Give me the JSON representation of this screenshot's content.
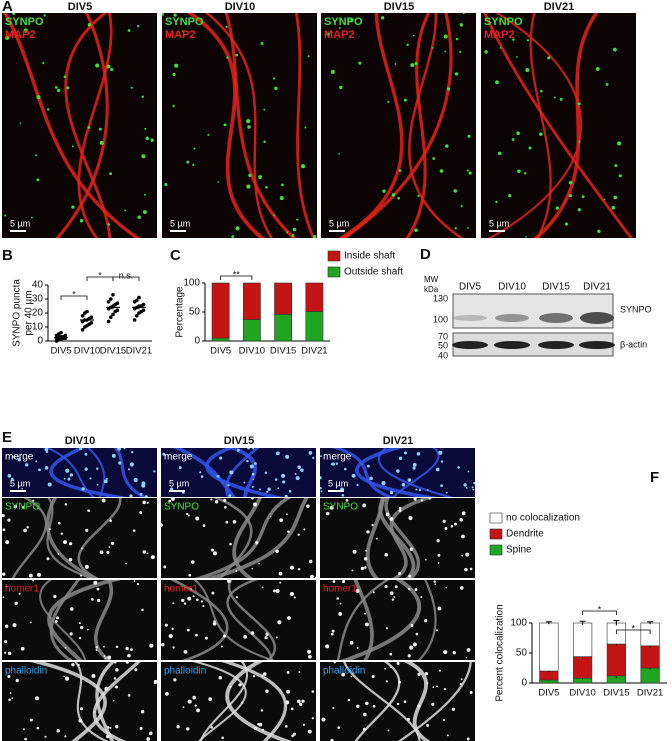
{
  "panel_a": {
    "letter": "A",
    "columns": [
      "DIV5",
      "DIV10",
      "DIV15",
      "DIV21"
    ],
    "stains": [
      "SYNPO",
      "MAP2"
    ],
    "scale_bar": "5 µm"
  },
  "chart_data": [
    {
      "type": "dot",
      "panel": "B",
      "ylabel": [
        "SYNPO puncta",
        "per 40 µm"
      ],
      "categories": [
        "DIV5",
        "DIV10",
        "DIV15",
        "DIV21"
      ],
      "values": [
        2.5,
        15,
        24,
        24
      ],
      "errors": [
        0.5,
        1.2,
        1.5,
        1.4
      ],
      "points": [
        [
          0,
          1,
          1,
          2,
          2,
          2,
          3,
          3,
          3,
          4,
          4,
          5,
          6
        ],
        [
          8,
          10,
          11,
          12,
          13,
          14,
          15,
          15,
          16,
          17,
          18,
          20,
          21
        ],
        [
          14,
          17,
          19,
          21,
          22,
          23,
          24,
          25,
          26,
          27,
          28,
          30,
          33
        ],
        [
          15,
          18,
          20,
          21,
          22,
          23,
          24,
          25,
          25,
          26,
          28,
          29,
          31
        ]
      ],
      "color": "#000000",
      "ylim": [
        0,
        40
      ],
      "yticks": [
        0,
        10,
        20,
        30,
        40
      ],
      "annotations": [
        "*",
        "*",
        "n.s."
      ]
    },
    {
      "type": "stacked_bar",
      "panel": "C",
      "ylabel": "Percentage",
      "categories": [
        "DIV5",
        "DIV10",
        "DIV15",
        "DIV21"
      ],
      "series": [
        {
          "name": "Outside shaft",
          "color": "#1fa51f",
          "values": [
            5,
            37,
            46,
            51
          ]
        },
        {
          "name": "Inside shaft",
          "color": "#c41414",
          "values": [
            95,
            63,
            54,
            49
          ]
        }
      ],
      "ylim": [
        0,
        100
      ],
      "yticks": [
        0,
        50,
        100
      ],
      "annotations": [
        "**"
      ],
      "legend": "top-right"
    },
    {
      "type": "stacked_bar",
      "panel": "F",
      "ylabel": "Percent colocalization",
      "categories": [
        "DIV5",
        "DIV10",
        "DIV15",
        "DIV21"
      ],
      "series": [
        {
          "name": "Spine",
          "color": "#1fa51f",
          "values": [
            5,
            8,
            12,
            25
          ],
          "errors": [
            1,
            2,
            4,
            2
          ]
        },
        {
          "name": "Dendrite",
          "color": "#c41414",
          "values": [
            15,
            36,
            53,
            37
          ],
          "errors": [
            2,
            3,
            3,
            3
          ]
        },
        {
          "name": "no colocalization",
          "color": "#ffffff",
          "values": [
            80,
            56,
            35,
            38
          ],
          "errors": [
            2,
            3,
            4,
            2
          ]
        }
      ],
      "ylim": [
        0,
        100
      ],
      "yticks": [
        0,
        50,
        100
      ],
      "annotations": [
        "*",
        "*"
      ],
      "legend": "top-left"
    }
  ],
  "panel_d": {
    "letter": "D",
    "mw_label": [
      "MW",
      "kDa"
    ],
    "lanes": [
      "DIV5",
      "DIV10",
      "DIV15",
      "DIV21"
    ],
    "markers": [
      130,
      100,
      70,
      50,
      40
    ],
    "bands": [
      "SYNPO",
      "β-actin"
    ]
  },
  "panel_e": {
    "letter": "E",
    "columns": [
      "DIV10",
      "DIV15",
      "DIV21"
    ],
    "rows": [
      "merge",
      "SYNPO",
      "homer1",
      "phalloidin"
    ],
    "scale_bar": "5 µm"
  }
}
